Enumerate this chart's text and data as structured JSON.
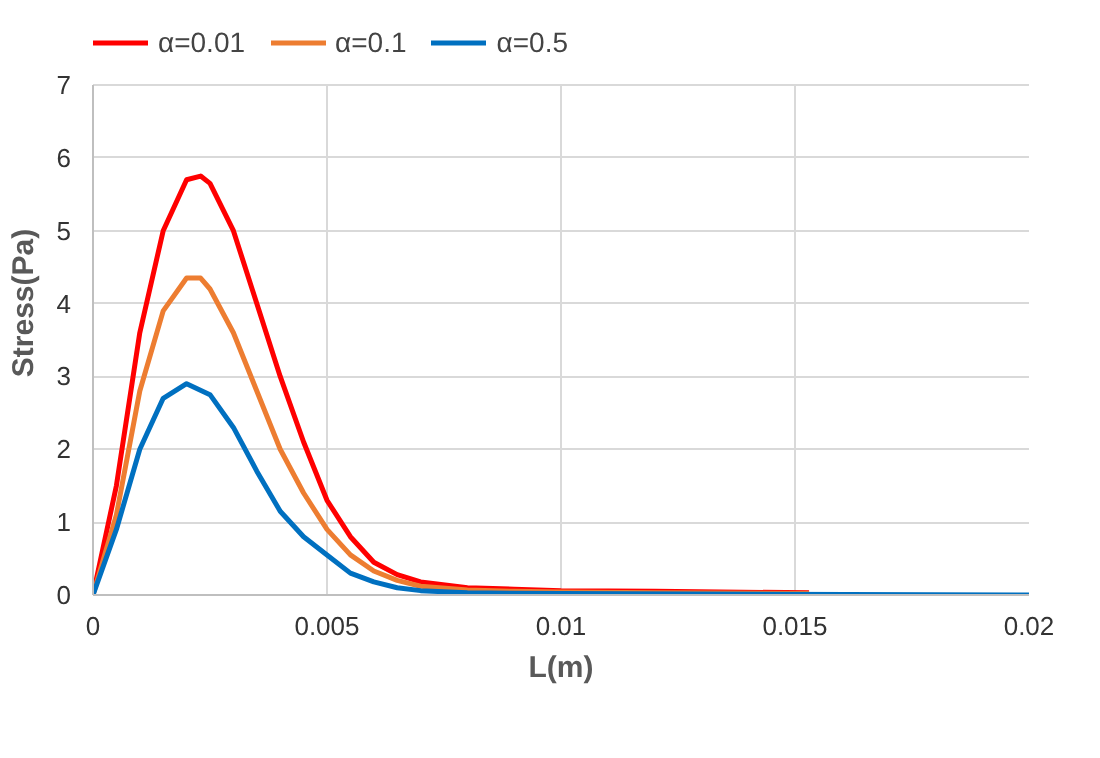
{
  "chart_data": {
    "type": "line",
    "xlabel": "L(m)",
    "ylabel": "Stress(Pa)",
    "xlim": [
      0,
      0.02
    ],
    "ylim": [
      0,
      7
    ],
    "xticks": [
      0,
      0.005,
      0.01,
      0.015,
      0.02
    ],
    "yticks": [
      0,
      1,
      2,
      3,
      4,
      5,
      6,
      7
    ],
    "grid": true,
    "legend": "top left",
    "marker": "none",
    "line_style": "solid",
    "x": [
      0,
      0.0005,
      0.001,
      0.0015,
      0.002,
      0.0023,
      0.0025,
      0.003,
      0.0035,
      0.004,
      0.0045,
      0.005,
      0.0055,
      0.006,
      0.0065,
      0.007,
      0.008,
      0.009,
      0.01,
      0.012,
      0.0153
    ],
    "series": [
      {
        "name": "α=0.01",
        "color": "#ff0000",
        "values": [
          0,
          1.5,
          3.6,
          5.0,
          5.7,
          5.75,
          5.65,
          5.0,
          4.0,
          3.0,
          2.1,
          1.3,
          0.8,
          0.45,
          0.28,
          0.18,
          0.1,
          0.08,
          0.06,
          0.05,
          0.03
        ]
      },
      {
        "name": "α=0.1",
        "color": "#ed7d31",
        "values": [
          0,
          1.1,
          2.8,
          3.9,
          4.35,
          4.35,
          4.2,
          3.6,
          2.8,
          2.0,
          1.4,
          0.9,
          0.55,
          0.33,
          0.2,
          0.12,
          0.07,
          0.05,
          0.04,
          0.03,
          0.02
        ]
      },
      {
        "name": "α=0.5",
        "color": "#0070c0",
        "x": [
          0,
          0.0005,
          0.001,
          0.0015,
          0.002,
          0.0025,
          0.003,
          0.0035,
          0.004,
          0.0045,
          0.005,
          0.0055,
          0.006,
          0.0065,
          0.007,
          0.008,
          0.01,
          0.02
        ],
        "values": [
          0,
          0.9,
          2.0,
          2.7,
          2.9,
          2.75,
          2.3,
          1.7,
          1.15,
          0.8,
          0.55,
          0.3,
          0.18,
          0.1,
          0.06,
          0.03,
          0.02,
          0
        ]
      }
    ]
  }
}
